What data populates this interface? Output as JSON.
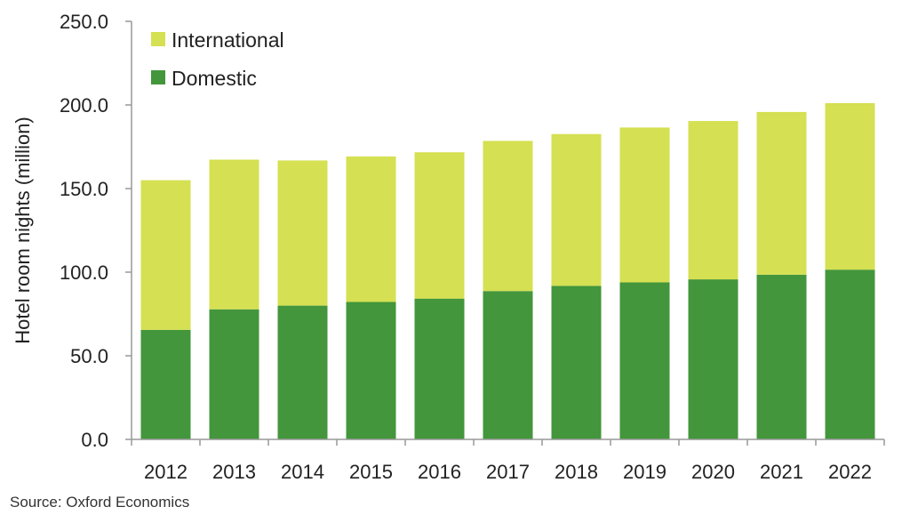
{
  "chart_data": {
    "type": "bar",
    "stacked": true,
    "categories": [
      "2012",
      "2013",
      "2014",
      "2015",
      "2016",
      "2017",
      "2018",
      "2019",
      "2020",
      "2021",
      "2022"
    ],
    "series": [
      {
        "name": "Domestic",
        "color": "#43963b",
        "values": [
          65.5,
          77.8,
          80.0,
          82.2,
          84.2,
          88.7,
          91.8,
          93.9,
          95.7,
          98.5,
          101.5
        ]
      },
      {
        "name": "International",
        "color": "#d5e052",
        "values": [
          89.5,
          89.5,
          86.8,
          87.0,
          87.5,
          89.8,
          90.8,
          92.6,
          94.7,
          97.3,
          99.6
        ]
      }
    ],
    "ylabel": "Hotel room nights (million)",
    "xlabel": "",
    "ylim": [
      0,
      250
    ],
    "yticks": [
      0,
      50,
      100,
      150,
      200,
      250
    ],
    "ytick_labels": [
      "0.0",
      "50.0",
      "100.0",
      "150.0",
      "200.0",
      "250.0"
    ],
    "grid": false,
    "legend_position": "top-left"
  },
  "source": "Source:  Oxford Economics"
}
